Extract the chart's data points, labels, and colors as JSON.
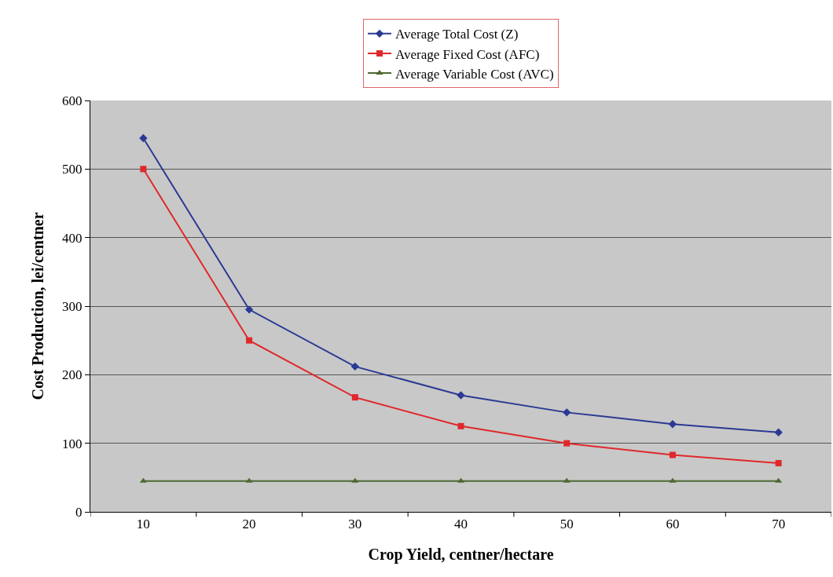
{
  "chart_data": {
    "type": "line",
    "xlabel": "Crop Yield, centner/hectare",
    "ylabel": "Cost Production, lei/centner",
    "categories": [
      "10",
      "20",
      "30",
      "40",
      "50",
      "60",
      "70"
    ],
    "series": [
      {
        "name": "Average Total Cost (Z)",
        "color": "#2b3a94",
        "marker": "diamond",
        "values": [
          545,
          295,
          212,
          170,
          145,
          128,
          116
        ]
      },
      {
        "name": "Average Fixed Cost (AFC)",
        "color": "#e0282c",
        "marker": "square",
        "values": [
          500,
          250,
          167,
          125,
          100,
          83,
          71
        ]
      },
      {
        "name": "Average Variable Cost (AVC)",
        "color": "#4d6a32",
        "marker": "triangle",
        "values": [
          45,
          45,
          45,
          45,
          45,
          45,
          45
        ]
      }
    ],
    "ylim": [
      0,
      600
    ],
    "yticks": [
      0,
      100,
      200,
      300,
      400,
      500,
      600
    ],
    "grid": "y",
    "legend": "top",
    "line_style": "solid"
  }
}
